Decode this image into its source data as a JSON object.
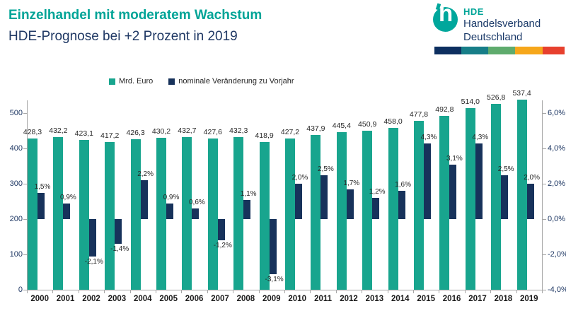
{
  "header": {
    "title": "Einzelhandel mit moderatem Wachstum",
    "subtitle": "HDE-Prognose bei +2 Prozent in 2019"
  },
  "logo": {
    "mark_letter": "h",
    "abbr": "HDE",
    "name_line1": "Handelsverband",
    "name_line2": "Deutschland",
    "stripe_colors": [
      "#0D2F60",
      "#177E88",
      "#5FAB6D",
      "#F6A71B",
      "#E7402E"
    ]
  },
  "legend": {
    "items": [
      {
        "label": "Mrd. Euro",
        "color": "#18A58E"
      },
      {
        "label": "nominale Veränderung zu Vorjahr",
        "color": "#17325B"
      }
    ]
  },
  "colors": {
    "title_teal": "#00A497",
    "navy_text": "#1F3864",
    "bar_teal": "#18A58E",
    "bar_navy": "#17325B",
    "axis_gray": "#A6A6A6",
    "label_black": "#262626"
  },
  "chart_data": {
    "type": "bar",
    "title": "Einzelhandel mit moderatem Wachstum – HDE-Prognose bei +2 Prozent in 2019",
    "categories": [
      "2000",
      "2001",
      "2002",
      "2003",
      "2004",
      "2005",
      "2006",
      "2007",
      "2008",
      "2009",
      "2010",
      "2011",
      "2012",
      "2013",
      "2014",
      "2015",
      "2016",
      "2017",
      "2018",
      "2019"
    ],
    "series": [
      {
        "name": "Mrd. Euro",
        "axis": "left",
        "color": "#18A58E",
        "values": [
          428.3,
          432.2,
          423.1,
          417.2,
          426.3,
          430.2,
          432.7,
          427.6,
          432.3,
          418.9,
          427.2,
          437.9,
          445.4,
          450.9,
          458.0,
          477.8,
          492.8,
          514.0,
          526.8,
          537.4
        ],
        "labels": [
          "428,3",
          "432,2",
          "423,1",
          "417,2",
          "426,3",
          "430,2",
          "432,7",
          "427,6",
          "432,3",
          "418,9",
          "427,2",
          "437,9",
          "445,4",
          "450,9",
          "458,0",
          "477,8",
          "492,8",
          "514,0",
          "526,8",
          "537,4"
        ]
      },
      {
        "name": "nominale Veränderung zu Vorjahr",
        "axis": "right",
        "color": "#17325B",
        "values": [
          1.5,
          0.9,
          -2.1,
          -1.4,
          2.2,
          0.9,
          0.6,
          -1.2,
          1.1,
          -3.1,
          2.0,
          2.5,
          1.7,
          1.2,
          1.6,
          4.3,
          3.1,
          4.3,
          2.5,
          2.0
        ],
        "labels": [
          "1,5%",
          "0,9%",
          "-2,1%",
          "-1,4%",
          "2,2%",
          "0,9%",
          "0,6%",
          "-1,2%",
          "1,1%",
          "-3,1%",
          "2,0%",
          "2,5%",
          "1,7%",
          "1,2%",
          "1,6%",
          "4,3%",
          "3,1%",
          "4,3%",
          "2,5%",
          "2,0%"
        ]
      }
    ],
    "left_axis": {
      "min": 0,
      "max": 500,
      "tick_labels": [
        "0",
        "100",
        "200",
        "300",
        "400",
        "500"
      ]
    },
    "right_axis": {
      "min": -4,
      "max": 6,
      "tick_labels": [
        "-4,0%",
        "-2,0%",
        "0,0%",
        "2,0%",
        "4,0%",
        "6,0%"
      ]
    },
    "grid": false,
    "legend_position": "top-center"
  }
}
